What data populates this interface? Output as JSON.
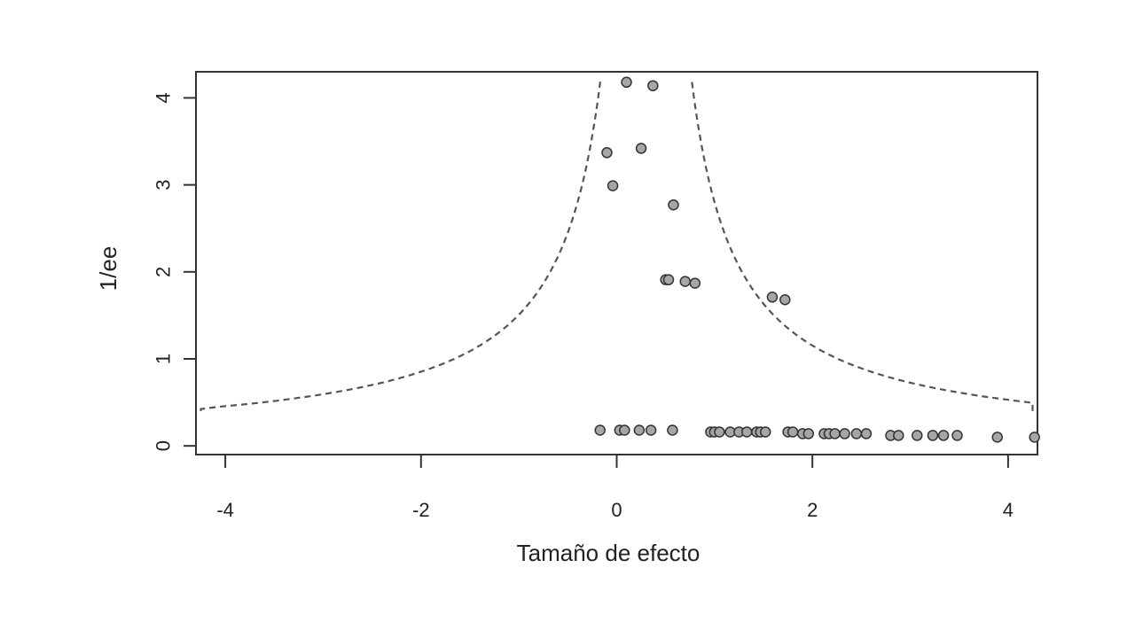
{
  "chart_data": {
    "type": "scatter",
    "xlabel": "Tamaño de efecto",
    "ylabel": "1/ee",
    "xlim": [
      -4.3,
      4.3
    ],
    "ylim": [
      -0.1,
      4.3
    ],
    "x_ticks": [
      -4,
      -2,
      0,
      2,
      4
    ],
    "x_tick_labels": [
      "-4",
      "-2",
      "0",
      "2",
      "4"
    ],
    "y_ticks": [
      0,
      1,
      2,
      3,
      4
    ],
    "y_tick_labels": [
      "0",
      "1",
      "2",
      "3",
      "4"
    ],
    "grid": false,
    "legend": "none",
    "colors": {
      "point_fill": "#a6a6a6",
      "point_edge": "#333333",
      "funnel_line": "#555555",
      "axis": "#333333"
    },
    "funnel": {
      "center": 0.3,
      "multiplier": 1.96,
      "y_range": [
        0.4,
        4.2
      ]
    },
    "series": [
      {
        "points": [
          {
            "x": 0.1,
            "y": 4.18
          },
          {
            "x": 0.37,
            "y": 4.14
          },
          {
            "x": -0.1,
            "y": 3.37
          },
          {
            "x": 0.25,
            "y": 3.42
          },
          {
            "x": -0.04,
            "y": 2.99
          },
          {
            "x": 0.58,
            "y": 2.77
          },
          {
            "x": 0.5,
            "y": 1.91
          },
          {
            "x": 0.53,
            "y": 1.91
          },
          {
            "x": 0.7,
            "y": 1.89
          },
          {
            "x": 0.8,
            "y": 1.87
          },
          {
            "x": 1.59,
            "y": 1.71
          },
          {
            "x": 1.72,
            "y": 1.68
          },
          {
            "x": -0.17,
            "y": 0.18
          },
          {
            "x": 0.03,
            "y": 0.18
          },
          {
            "x": 0.08,
            "y": 0.18
          },
          {
            "x": 0.23,
            "y": 0.18
          },
          {
            "x": 0.35,
            "y": 0.18
          },
          {
            "x": 0.57,
            "y": 0.18
          },
          {
            "x": 0.96,
            "y": 0.16
          },
          {
            "x": 1.0,
            "y": 0.16
          },
          {
            "x": 1.05,
            "y": 0.16
          },
          {
            "x": 1.16,
            "y": 0.16
          },
          {
            "x": 1.25,
            "y": 0.16
          },
          {
            "x": 1.33,
            "y": 0.16
          },
          {
            "x": 1.43,
            "y": 0.16
          },
          {
            "x": 1.47,
            "y": 0.16
          },
          {
            "x": 1.52,
            "y": 0.16
          },
          {
            "x": 1.75,
            "y": 0.16
          },
          {
            "x": 1.8,
            "y": 0.16
          },
          {
            "x": 1.9,
            "y": 0.14
          },
          {
            "x": 1.96,
            "y": 0.14
          },
          {
            "x": 2.12,
            "y": 0.14
          },
          {
            "x": 2.17,
            "y": 0.14
          },
          {
            "x": 2.23,
            "y": 0.14
          },
          {
            "x": 2.33,
            "y": 0.14
          },
          {
            "x": 2.45,
            "y": 0.14
          },
          {
            "x": 2.55,
            "y": 0.14
          },
          {
            "x": 2.8,
            "y": 0.12
          },
          {
            "x": 2.88,
            "y": 0.12
          },
          {
            "x": 3.07,
            "y": 0.12
          },
          {
            "x": 3.23,
            "y": 0.12
          },
          {
            "x": 3.34,
            "y": 0.12
          },
          {
            "x": 3.48,
            "y": 0.12
          },
          {
            "x": 3.89,
            "y": 0.1
          },
          {
            "x": 4.27,
            "y": 0.1
          }
        ]
      }
    ]
  }
}
